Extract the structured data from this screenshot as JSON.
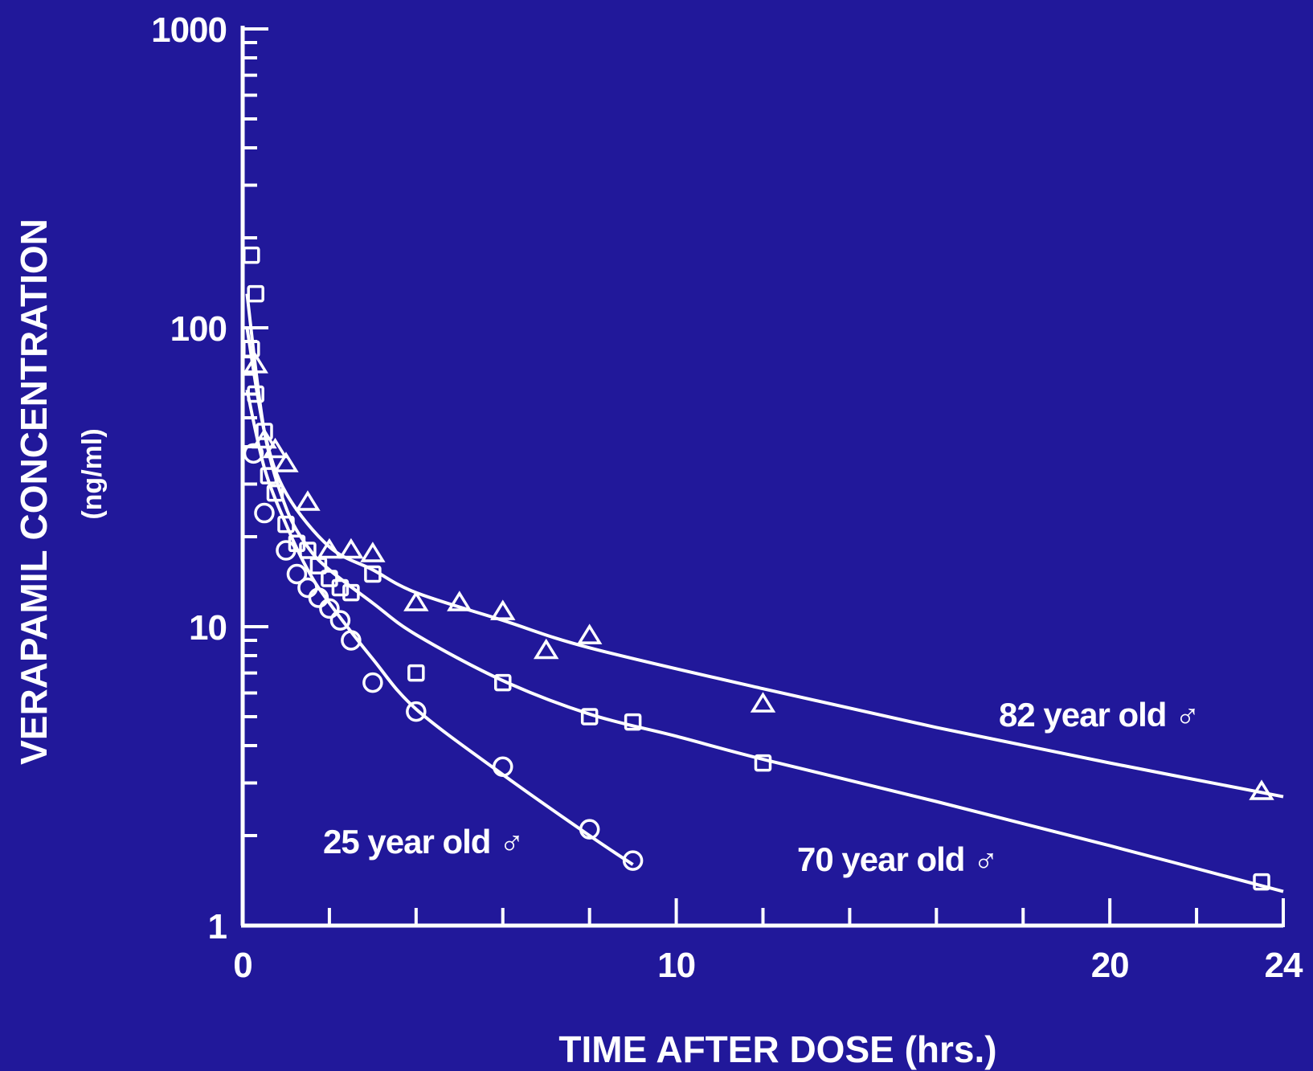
{
  "chart_data": {
    "type": "scatter",
    "title": "",
    "xlabel": "TIME AFTER DOSE (hrs.)",
    "ylabel": "VERAPAMIL CONCENTRATION",
    "ylabel_unit": "(ng/ml)",
    "x_scale": "linear",
    "y_scale": "log",
    "xlim": [
      0,
      24
    ],
    "ylim": [
      1,
      1000
    ],
    "x_tick_labels": [
      "0",
      "10",
      "20",
      "24"
    ],
    "y_tick_labels": [
      "1",
      "10",
      "100",
      "1000"
    ],
    "grid": false,
    "colors": {
      "background": "#21189a",
      "foreground": "#ffffff"
    },
    "series": [
      {
        "name": "25 year old ♂",
        "marker": "circle",
        "points": [
          {
            "x": 0.25,
            "y": 38
          },
          {
            "x": 0.5,
            "y": 24
          },
          {
            "x": 1.0,
            "y": 18
          },
          {
            "x": 1.25,
            "y": 15
          },
          {
            "x": 1.5,
            "y": 13.5
          },
          {
            "x": 1.75,
            "y": 12.5
          },
          {
            "x": 2.0,
            "y": 11.5
          },
          {
            "x": 2.25,
            "y": 10.5
          },
          {
            "x": 2.5,
            "y": 9
          },
          {
            "x": 3.0,
            "y": 6.5
          },
          {
            "x": 4.0,
            "y": 5.2
          },
          {
            "x": 6.0,
            "y": 3.4
          },
          {
            "x": 8.0,
            "y": 2.1
          },
          {
            "x": 9.0,
            "y": 1.65
          }
        ],
        "fit": [
          {
            "x": 0.1,
            "y": 62
          },
          {
            "x": 0.5,
            "y": 34
          },
          {
            "x": 1.0,
            "y": 22
          },
          {
            "x": 1.5,
            "y": 15.5
          },
          {
            "x": 2.0,
            "y": 12
          },
          {
            "x": 3.0,
            "y": 7.8
          },
          {
            "x": 4.0,
            "y": 5.3
          },
          {
            "x": 6.0,
            "y": 3.2
          },
          {
            "x": 8.0,
            "y": 2.0
          },
          {
            "x": 9.0,
            "y": 1.6
          }
        ]
      },
      {
        "name": "70 year old ♂",
        "marker": "square",
        "points": [
          {
            "x": 0.2,
            "y": 175
          },
          {
            "x": 0.3,
            "y": 130
          },
          {
            "x": 0.2,
            "y": 85
          },
          {
            "x": 0.3,
            "y": 60
          },
          {
            "x": 0.5,
            "y": 45
          },
          {
            "x": 0.6,
            "y": 32
          },
          {
            "x": 0.75,
            "y": 28
          },
          {
            "x": 1.0,
            "y": 22
          },
          {
            "x": 1.25,
            "y": 19
          },
          {
            "x": 1.5,
            "y": 18
          },
          {
            "x": 1.75,
            "y": 16
          },
          {
            "x": 2.0,
            "y": 14.5
          },
          {
            "x": 2.25,
            "y": 13.5
          },
          {
            "x": 2.5,
            "y": 13
          },
          {
            "x": 3.0,
            "y": 15
          },
          {
            "x": 4.0,
            "y": 7
          },
          {
            "x": 6.0,
            "y": 6.5
          },
          {
            "x": 8.0,
            "y": 5
          },
          {
            "x": 9.0,
            "y": 4.8
          },
          {
            "x": 12.0,
            "y": 3.5
          },
          {
            "x": 23.5,
            "y": 1.4
          }
        ],
        "fit": [
          {
            "x": 0.1,
            "y": 130
          },
          {
            "x": 0.5,
            "y": 45
          },
          {
            "x": 1.0,
            "y": 25
          },
          {
            "x": 1.5,
            "y": 18.5
          },
          {
            "x": 2.0,
            "y": 15.5
          },
          {
            "x": 3.0,
            "y": 12
          },
          {
            "x": 4.0,
            "y": 9.4
          },
          {
            "x": 6.0,
            "y": 6.6
          },
          {
            "x": 8.0,
            "y": 5.1
          },
          {
            "x": 10.0,
            "y": 4.3
          },
          {
            "x": 12.0,
            "y": 3.6
          },
          {
            "x": 16.0,
            "y": 2.6
          },
          {
            "x": 20.0,
            "y": 1.85
          },
          {
            "x": 24.0,
            "y": 1.3
          }
        ]
      },
      {
        "name": "82 year old ♂",
        "marker": "triangle",
        "points": [
          {
            "x": 0.3,
            "y": 75
          },
          {
            "x": 0.5,
            "y": 42
          },
          {
            "x": 0.75,
            "y": 39
          },
          {
            "x": 1.0,
            "y": 35
          },
          {
            "x": 1.5,
            "y": 26
          },
          {
            "x": 2.0,
            "y": 18
          },
          {
            "x": 2.5,
            "y": 18
          },
          {
            "x": 3.0,
            "y": 17.5
          },
          {
            "x": 4.0,
            "y": 12
          },
          {
            "x": 5.0,
            "y": 12
          },
          {
            "x": 6.0,
            "y": 11.2
          },
          {
            "x": 7.0,
            "y": 8.3
          },
          {
            "x": 8.0,
            "y": 9.3
          },
          {
            "x": 12.0,
            "y": 5.5
          },
          {
            "x": 23.5,
            "y": 2.8
          }
        ],
        "fit": [
          {
            "x": 0.1,
            "y": 100
          },
          {
            "x": 0.5,
            "y": 45
          },
          {
            "x": 1.0,
            "y": 28
          },
          {
            "x": 2.0,
            "y": 18.5
          },
          {
            "x": 3.0,
            "y": 15.5
          },
          {
            "x": 4.0,
            "y": 13
          },
          {
            "x": 6.0,
            "y": 10.5
          },
          {
            "x": 8.0,
            "y": 8.5
          },
          {
            "x": 12.0,
            "y": 6.2
          },
          {
            "x": 16.0,
            "y": 4.6
          },
          {
            "x": 20.0,
            "y": 3.5
          },
          {
            "x": 24.0,
            "y": 2.7
          }
        ]
      }
    ]
  }
}
